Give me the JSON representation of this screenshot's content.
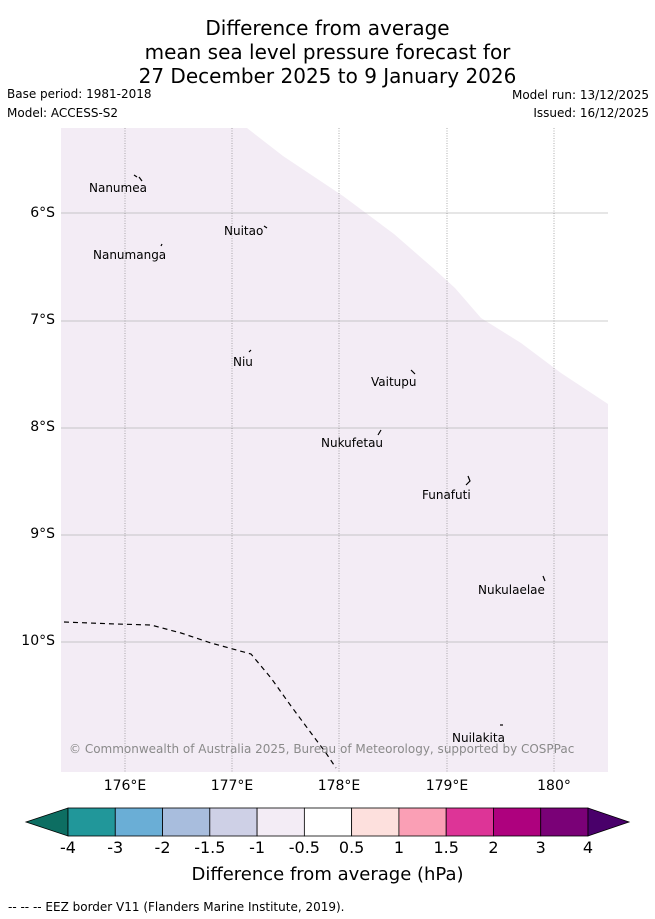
{
  "title": {
    "line1": "Difference from average",
    "line2": "mean sea level pressure forecast for",
    "line3": "27 December 2025 to 9 January 2026"
  },
  "meta": {
    "base_period": "Base period: 1981-2018",
    "model": "Model: ACCESS-S2",
    "model_run": "Model run: 13/12/2025",
    "issued": "Issued: 16/12/2025"
  },
  "map": {
    "lat_labels": [
      "6°S",
      "7°S",
      "8°S",
      "9°S",
      "10°S"
    ],
    "lon_labels": [
      "176°E",
      "177°E",
      "178°E",
      "179°E",
      "180°"
    ],
    "places": [
      {
        "name": "Nanumea"
      },
      {
        "name": "Nuitao"
      },
      {
        "name": "Nanumanga"
      },
      {
        "name": "Niu"
      },
      {
        "name": "Vaitupu"
      },
      {
        "name": "Nukufetau"
      },
      {
        "name": "Funafuti"
      },
      {
        "name": "Nukulaelae"
      },
      {
        "name": "Nuilakita"
      }
    ],
    "copyright": "© Commonwealth of Australia 2025, Bureau of Meteorology, supported by COSPPac",
    "shading_category": "-1 to -0.5",
    "colors": {
      "shade": "#f3ecf5",
      "grid": "#9a9a9a"
    }
  },
  "colorbar": {
    "ticks": [
      "-4",
      "-3",
      "-2",
      "-1.5",
      "-1",
      "-0.5",
      "0.5",
      "1",
      "1.5",
      "2",
      "3",
      "4"
    ],
    "colors": [
      "#0d6e62",
      "#21979a",
      "#6aaed6",
      "#a8bddd",
      "#ced0e6",
      "#f3ecf5",
      "#ffffff",
      "#fde0dd",
      "#fa9fb5",
      "#dd3497",
      "#ae017e",
      "#7a0177",
      "#49006a"
    ],
    "label": "Difference from average (hPa)"
  },
  "footer": {
    "eez_note": "--  --  -- EEZ border V11 (Flanders Marine Institute, 2019)."
  }
}
